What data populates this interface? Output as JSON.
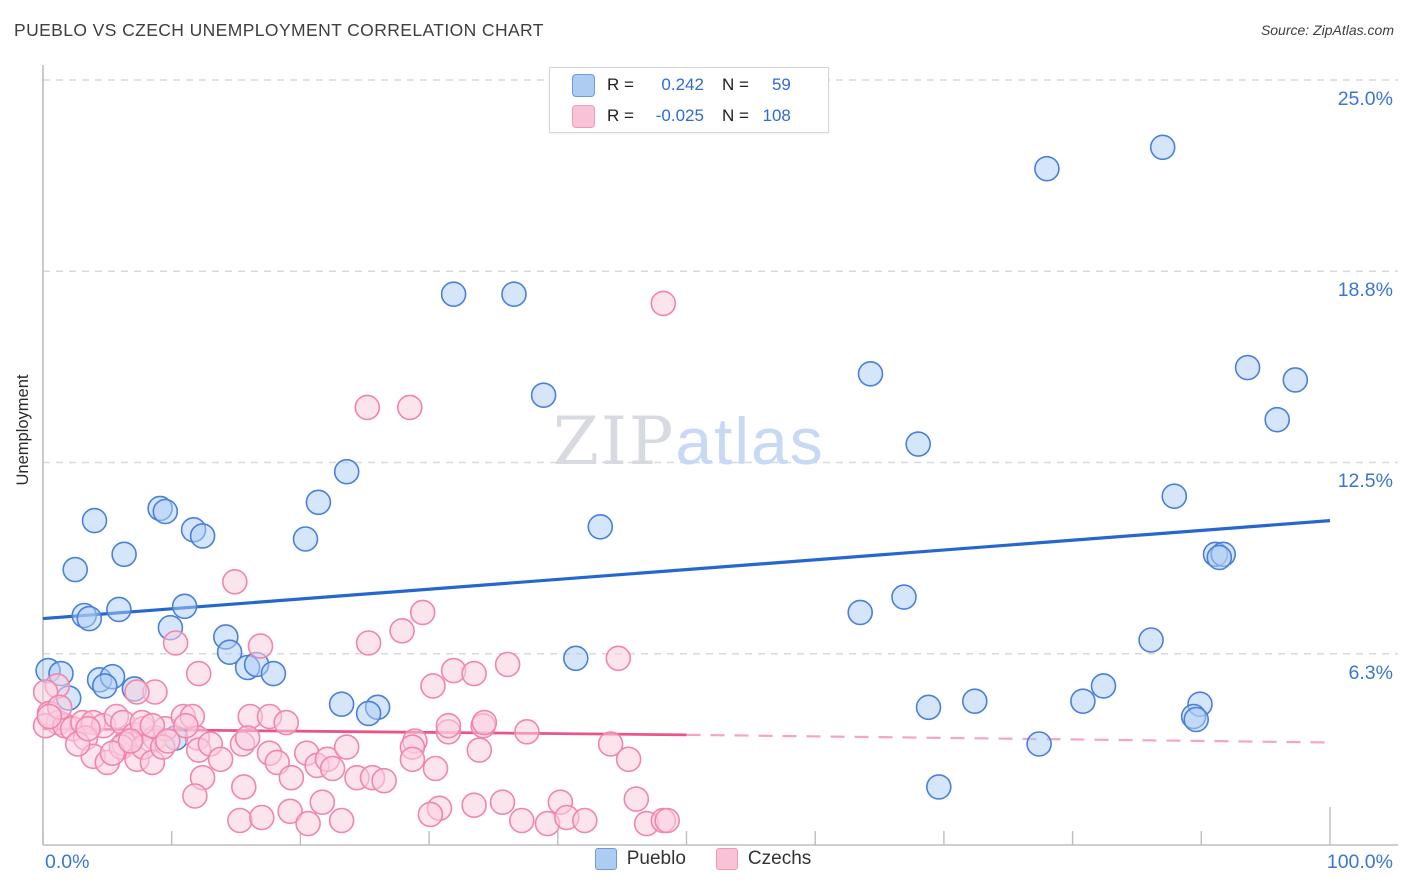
{
  "header": {
    "title": "PUEBLO VS CZECH UNEMPLOYMENT CORRELATION CHART",
    "source": "Source: ZipAtlas.com"
  },
  "watermark": {
    "zip": "ZIP",
    "atlas": "atlas"
  },
  "legend_box": {
    "rows": [
      {
        "series": "Pueblo",
        "r_label": "R =",
        "r_value": "0.242",
        "n_label": "N =",
        "n_value": "59"
      },
      {
        "series": "Czechs",
        "r_label": "R =",
        "r_value": "-0.025",
        "n_label": "N =",
        "n_value": "108"
      }
    ]
  },
  "bottom_legend": [
    {
      "label": "Pueblo",
      "fill": "#aecbf2",
      "stroke": "#6d9bd8"
    },
    {
      "label": "Czechs",
      "fill": "#f9c2d6",
      "stroke": "#eb9cb8"
    }
  ],
  "axes": {
    "y_label": "Unemployment",
    "y_ticks": [
      {
        "label": "25.0%",
        "value": 25.0
      },
      {
        "label": "18.8%",
        "value": 18.75
      },
      {
        "label": "12.5%",
        "value": 12.5
      },
      {
        "label": "6.3%",
        "value": 6.25
      }
    ],
    "x_left_label": "0.0%",
    "x_right_label": "100.0%",
    "x_tick_values": [
      0,
      10,
      20,
      30,
      40,
      50,
      60,
      70,
      80,
      90,
      100
    ]
  },
  "colors": {
    "grid": "#d9d9d9",
    "axis": "#bdbdbd",
    "tick_text": "#3a76d2",
    "blue_marker_stroke": "#4a80d9",
    "blue_marker_fill": "rgba(173,205,245,0.50)",
    "pink_marker_stroke": "#f285ac",
    "pink_marker_fill": "rgba(250,205,222,0.55)",
    "blue_line": "#2567cf",
    "pink_line": "#e9548c",
    "pink_line_dashed": "#f3a6c2"
  },
  "chart_data": {
    "type": "scatter",
    "title": "PUEBLO VS CZECH UNEMPLOYMENT CORRELATION CHART",
    "xlabel": "",
    "ylabel": "Unemployment",
    "xlim": [
      0,
      100
    ],
    "ylim": [
      0,
      25.5
    ],
    "x_unit": "percent of population group",
    "y_unit": "unemployment percent",
    "grid": "horizontal-dashed",
    "legend_position": "top-center-box and bottom-center",
    "series": [
      {
        "name": "Pueblo",
        "R": 0.242,
        "N": 59,
        "trend": {
          "type": "solid",
          "x1": 0,
          "y1": 7.4,
          "x2": 100,
          "y2": 10.6
        },
        "points": [
          [
            4.0,
            10.6
          ],
          [
            9.1,
            11.0
          ],
          [
            9.5,
            10.9
          ],
          [
            11.7,
            10.3
          ],
          [
            12.4,
            10.1
          ],
          [
            6.3,
            9.5
          ],
          [
            2.5,
            9.0
          ],
          [
            23.6,
            12.2
          ],
          [
            21.4,
            11.2
          ],
          [
            20.4,
            10.0
          ],
          [
            5.9,
            7.7
          ],
          [
            3.2,
            7.5
          ],
          [
            3.6,
            7.4
          ],
          [
            11.0,
            7.8
          ],
          [
            9.9,
            7.1
          ],
          [
            14.2,
            6.8
          ],
          [
            14.5,
            6.3
          ],
          [
            15.9,
            5.8
          ],
          [
            16.6,
            5.9
          ],
          [
            17.9,
            5.6
          ],
          [
            0.4,
            5.7
          ],
          [
            1.4,
            5.6
          ],
          [
            4.4,
            5.4
          ],
          [
            5.4,
            5.5
          ],
          [
            4.8,
            5.2
          ],
          [
            7.1,
            5.1
          ],
          [
            2.0,
            4.8
          ],
          [
            23.2,
            4.6
          ],
          [
            26.0,
            4.5
          ],
          [
            10.3,
            3.5
          ],
          [
            25.3,
            4.3
          ],
          [
            31.9,
            18.0
          ],
          [
            36.6,
            18.0
          ],
          [
            38.9,
            14.7
          ],
          [
            43.3,
            10.4
          ],
          [
            41.4,
            6.1
          ],
          [
            63.5,
            7.6
          ],
          [
            64.3,
            15.4
          ],
          [
            66.9,
            8.1
          ],
          [
            68.0,
            13.1
          ],
          [
            68.8,
            4.5
          ],
          [
            72.4,
            4.7
          ],
          [
            77.4,
            3.3
          ],
          [
            69.6,
            1.9
          ],
          [
            78.0,
            22.1
          ],
          [
            87.0,
            22.8
          ],
          [
            87.9,
            11.4
          ],
          [
            91.1,
            9.5
          ],
          [
            91.7,
            9.5
          ],
          [
            91.4,
            9.4
          ],
          [
            86.1,
            6.7
          ],
          [
            82.4,
            5.2
          ],
          [
            80.8,
            4.7
          ],
          [
            89.9,
            4.6
          ],
          [
            89.4,
            4.2
          ],
          [
            89.6,
            4.1
          ],
          [
            93.6,
            15.6
          ],
          [
            97.3,
            15.2
          ],
          [
            95.9,
            13.9
          ]
        ]
      },
      {
        "name": "Czechs",
        "R": -0.025,
        "N": 108,
        "trend": {
          "type": "solid-then-dashed",
          "x1": 0,
          "y1": 3.8,
          "x_break": 50,
          "y_break": 3.6,
          "x2": 100,
          "y2": 3.35
        },
        "points": [
          [
            25.2,
            14.3
          ],
          [
            28.5,
            14.3
          ],
          [
            48.2,
            17.7
          ],
          [
            14.9,
            8.6
          ],
          [
            29.5,
            7.6
          ],
          [
            27.9,
            7.0
          ],
          [
            10.3,
            6.6
          ],
          [
            16.9,
            6.5
          ],
          [
            25.3,
            6.6
          ],
          [
            36.1,
            5.9
          ],
          [
            44.7,
            6.1
          ],
          [
            31.9,
            5.7
          ],
          [
            33.5,
            5.6
          ],
          [
            30.3,
            5.2
          ],
          [
            1.1,
            5.2
          ],
          [
            8.7,
            5.0
          ],
          [
            7.3,
            5.0
          ],
          [
            12.1,
            5.6
          ],
          [
            0.2,
            5.0
          ],
          [
            0.5,
            4.3
          ],
          [
            1.2,
            4.0
          ],
          [
            0.2,
            3.9
          ],
          [
            1.7,
            3.9
          ],
          [
            2.3,
            3.8
          ],
          [
            3.1,
            4.0
          ],
          [
            3.9,
            4.0
          ],
          [
            4.7,
            3.9
          ],
          [
            5.7,
            4.2
          ],
          [
            6.2,
            4.0
          ],
          [
            7.1,
            3.6
          ],
          [
            7.8,
            3.8
          ],
          [
            8.7,
            3.5
          ],
          [
            9.5,
            3.8
          ],
          [
            10.9,
            4.2
          ],
          [
            11.6,
            4.2
          ],
          [
            12.0,
            3.5
          ],
          [
            1.3,
            4.5
          ],
          [
            0.5,
            4.2
          ],
          [
            7.7,
            4.0
          ],
          [
            11.1,
            3.9
          ],
          [
            16.1,
            4.2
          ],
          [
            17.6,
            4.2
          ],
          [
            18.9,
            4.0
          ],
          [
            3.3,
            3.5
          ],
          [
            6.3,
            3.3
          ],
          [
            3.9,
            2.9
          ],
          [
            5.0,
            2.7
          ],
          [
            6.1,
            3.2
          ],
          [
            7.3,
            2.8
          ],
          [
            7.8,
            3.2
          ],
          [
            8.5,
            2.7
          ],
          [
            9.3,
            3.2
          ],
          [
            12.1,
            3.1
          ],
          [
            13.0,
            3.3
          ],
          [
            13.8,
            2.8
          ],
          [
            12.4,
            2.2
          ],
          [
            11.8,
            1.6
          ],
          [
            15.5,
            3.3
          ],
          [
            15.9,
            3.5
          ],
          [
            17.6,
            3.0
          ],
          [
            18.2,
            2.7
          ],
          [
            19.3,
            2.2
          ],
          [
            20.5,
            3.0
          ],
          [
            21.3,
            2.6
          ],
          [
            22.1,
            2.8
          ],
          [
            22.5,
            2.5
          ],
          [
            23.6,
            3.2
          ],
          [
            24.4,
            2.2
          ],
          [
            25.6,
            2.2
          ],
          [
            15.6,
            1.9
          ],
          [
            15.3,
            0.8
          ],
          [
            17.0,
            0.9
          ],
          [
            19.2,
            1.1
          ],
          [
            20.6,
            0.7
          ],
          [
            21.7,
            1.4
          ],
          [
            23.2,
            0.8
          ],
          [
            28.9,
            3.4
          ],
          [
            28.7,
            3.2
          ],
          [
            28.7,
            2.8
          ],
          [
            30.5,
            2.5
          ],
          [
            31.5,
            3.7
          ],
          [
            34.2,
            3.9
          ],
          [
            33.9,
            3.1
          ],
          [
            37.6,
            3.7
          ],
          [
            44.1,
            3.3
          ],
          [
            45.5,
            2.8
          ],
          [
            46.1,
            1.5
          ],
          [
            40.2,
            1.4
          ],
          [
            35.7,
            1.4
          ],
          [
            33.5,
            1.3
          ],
          [
            30.8,
            1.2
          ],
          [
            30.1,
            1.0
          ],
          [
            37.2,
            0.8
          ],
          [
            39.2,
            0.7
          ],
          [
            40.7,
            0.9
          ],
          [
            42.1,
            0.8
          ],
          [
            46.9,
            0.7
          ],
          [
            48.2,
            0.8
          ],
          [
            48.5,
            0.8
          ],
          [
            34.3,
            4.0
          ],
          [
            31.5,
            3.9
          ],
          [
            26.5,
            2.1
          ],
          [
            2.7,
            3.3
          ],
          [
            3.5,
            3.8
          ],
          [
            5.4,
            3.0
          ],
          [
            6.8,
            3.4
          ],
          [
            8.5,
            3.9
          ],
          [
            9.7,
            3.4
          ]
        ]
      }
    ]
  }
}
